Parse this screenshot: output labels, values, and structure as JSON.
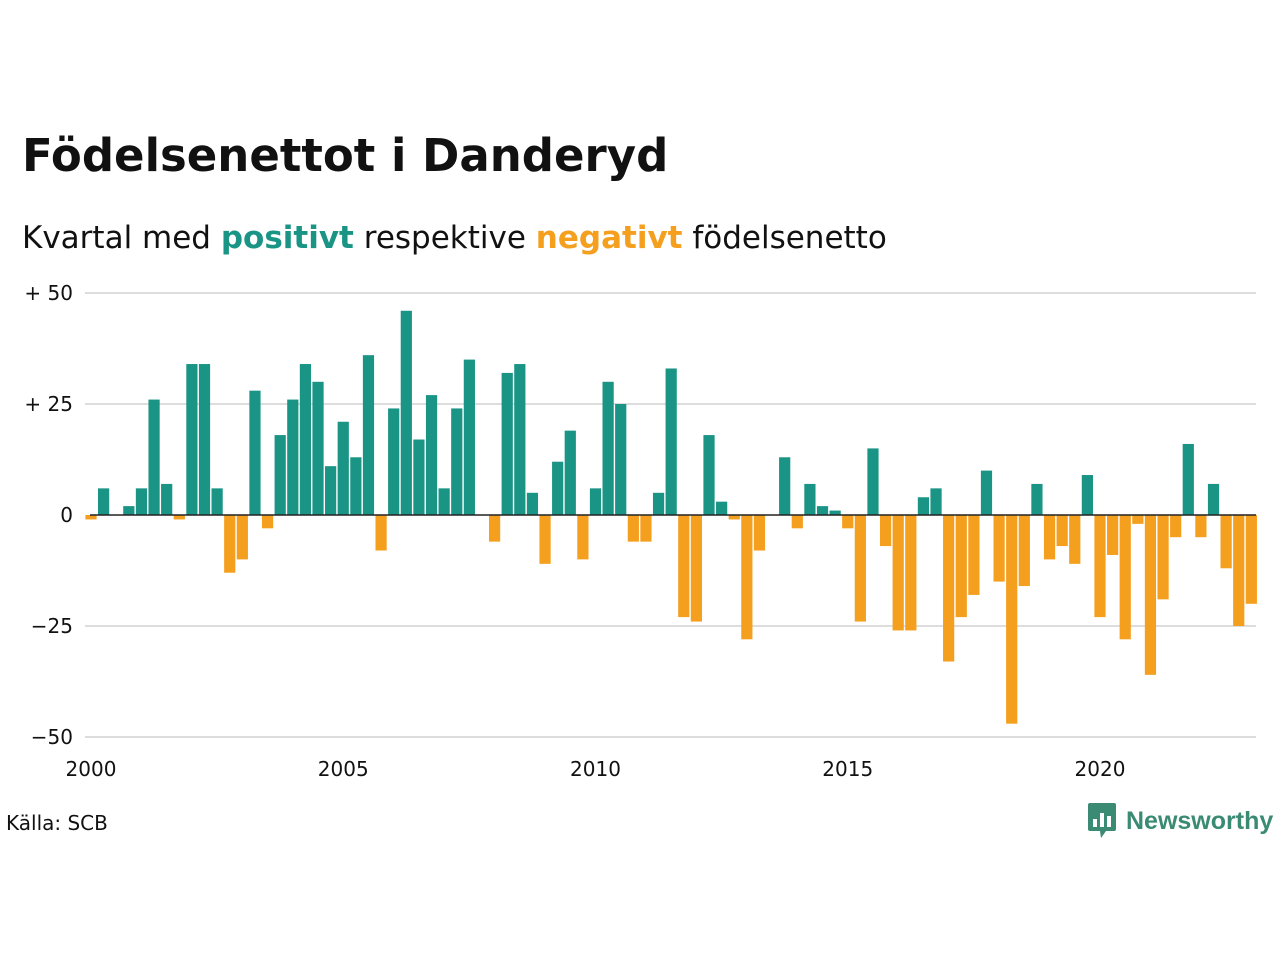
{
  "chart_data": {
    "type": "bar",
    "title": "Födelsenettot i Danderyd",
    "subtitle": {
      "prefix": "Kvartal med",
      "positive_word": "positivt",
      "middle": "respektive",
      "negative_word": "negativt",
      "suffix": "födelsenetto"
    },
    "xlabel": "",
    "ylabel": "",
    "x_start": 2000,
    "periods_per_year": 4,
    "x_ticks": [
      {
        "value": 2000,
        "label": "2000"
      },
      {
        "value": 2005,
        "label": "2005"
      },
      {
        "value": 2010,
        "label": "2010"
      },
      {
        "value": 2015,
        "label": "2015"
      },
      {
        "value": 2020,
        "label": "2020"
      }
    ],
    "y_ticks": [
      {
        "value": 50,
        "label": "+ 50"
      },
      {
        "value": 25,
        "label": "+ 25"
      },
      {
        "value": 0,
        "label": "0"
      },
      {
        "value": -25,
        "label": "−25"
      },
      {
        "value": -50,
        "label": "−50"
      }
    ],
    "ylim": [
      -50,
      50
    ],
    "xlim": [
      2000,
      2023
    ],
    "grid": true,
    "colors": {
      "positive": "#1a9485",
      "negative": "#f59f1f",
      "grid": "#dddddd",
      "zero_line": "#222222",
      "brand": "#3a8a74"
    },
    "values": [
      -1,
      6,
      0,
      2,
      6,
      26,
      7,
      -1,
      34,
      34,
      6,
      -13,
      -10,
      28,
      -3,
      18,
      26,
      34,
      30,
      11,
      21,
      13,
      36,
      -8,
      24,
      46,
      17,
      27,
      6,
      24,
      35,
      0,
      -6,
      32,
      34,
      5,
      -11,
      12,
      19,
      -10,
      6,
      30,
      25,
      -6,
      -6,
      5,
      33,
      -23,
      -24,
      18,
      3,
      -1,
      -28,
      -8,
      0,
      13,
      -3,
      7,
      2,
      1,
      -3,
      -24,
      15,
      -7,
      -26,
      -26,
      4,
      6,
      -33,
      -23,
      -18,
      10,
      -15,
      -47,
      -16,
      7,
      -10,
      -7,
      -11,
      9,
      -23,
      -9,
      -28,
      -2,
      -36,
      -19,
      -5,
      16,
      -5,
      7,
      -12,
      -25,
      -20
    ]
  },
  "source": "Källa: SCB",
  "brand": {
    "name": "Newsworthy",
    "icon": "newsworthy-logo-icon"
  }
}
